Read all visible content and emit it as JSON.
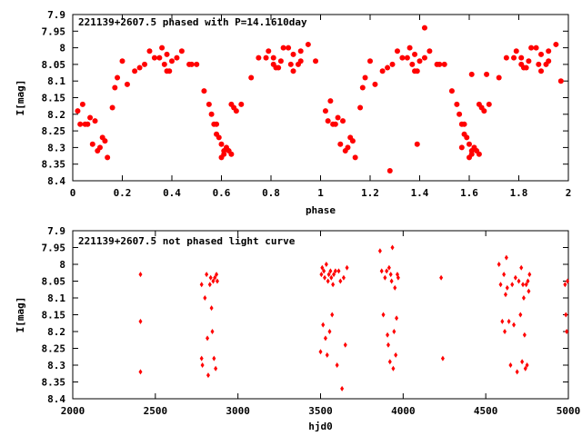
{
  "chart_data": [
    {
      "type": "scatter",
      "title": "221139+2607.5 phased with P=14.1610day",
      "xlabel": "phase",
      "ylabel": "I[mag]",
      "xlim": [
        0,
        2
      ],
      "ylim": [
        8.4,
        7.9
      ],
      "y_inverted": true,
      "grid": false,
      "marker_color": "#ff0000",
      "marker": "filled-circle",
      "x_ticks": [
        "0",
        "0.2",
        "0.4",
        "0.6",
        "0.8",
        "1",
        "1.2",
        "1.4",
        "1.6",
        "1.8",
        "2"
      ],
      "y_ticks": [
        "7.9",
        "7.95",
        "8",
        "8.05",
        "8.1",
        "8.15",
        "8.2",
        "8.25",
        "8.3",
        "8.35",
        "8.4"
      ],
      "points": [
        [
          0.02,
          8.19
        ],
        [
          0.03,
          8.23
        ],
        [
          0.04,
          8.17
        ],
        [
          0.05,
          8.23
        ],
        [
          0.06,
          8.23
        ],
        [
          0.07,
          8.21
        ],
        [
          0.08,
          8.29
        ],
        [
          0.09,
          8.22
        ],
        [
          0.1,
          8.31
        ],
        [
          0.11,
          8.3
        ],
        [
          0.12,
          8.27
        ],
        [
          0.13,
          8.28
        ],
        [
          0.14,
          8.33
        ],
        [
          0.16,
          8.18
        ],
        [
          0.17,
          8.12
        ],
        [
          0.18,
          8.09
        ],
        [
          0.2,
          8.04
        ],
        [
          0.22,
          8.11
        ],
        [
          0.25,
          8.07
        ],
        [
          0.27,
          8.06
        ],
        [
          0.29,
          8.05
        ],
        [
          0.31,
          8.01
        ],
        [
          0.33,
          8.03
        ],
        [
          0.35,
          8.03
        ],
        [
          0.36,
          8.0
        ],
        [
          0.37,
          8.05
        ],
        [
          0.38,
          8.07
        ],
        [
          0.38,
          8.02
        ],
        [
          0.39,
          8.07
        ],
        [
          0.4,
          8.04
        ],
        [
          0.42,
          8.03
        ],
        [
          0.44,
          8.01
        ],
        [
          0.47,
          8.05
        ],
        [
          0.48,
          8.05
        ],
        [
          0.5,
          8.05
        ],
        [
          0.53,
          8.13
        ],
        [
          0.55,
          8.17
        ],
        [
          0.56,
          8.2
        ],
        [
          0.57,
          8.23
        ],
        [
          0.58,
          8.23
        ],
        [
          0.58,
          8.26
        ],
        [
          0.59,
          8.27
        ],
        [
          0.6,
          8.29
        ],
        [
          0.6,
          8.33
        ],
        [
          0.61,
          8.32
        ],
        [
          0.61,
          8.31
        ],
        [
          0.62,
          8.3
        ],
        [
          0.63,
          8.31
        ],
        [
          0.64,
          8.17
        ],
        [
          0.64,
          8.32
        ],
        [
          0.65,
          8.18
        ],
        [
          0.66,
          8.19
        ],
        [
          0.68,
          8.17
        ],
        [
          0.72,
          8.09
        ],
        [
          0.75,
          8.03
        ],
        [
          0.78,
          8.03
        ],
        [
          0.79,
          8.01
        ],
        [
          0.81,
          8.05
        ],
        [
          0.81,
          8.03
        ],
        [
          0.82,
          8.06
        ],
        [
          0.83,
          8.06
        ],
        [
          0.84,
          8.04
        ],
        [
          0.85,
          8.0
        ],
        [
          0.87,
          8.0
        ],
        [
          0.88,
          8.05
        ],
        [
          0.89,
          8.07
        ],
        [
          0.89,
          8.02
        ],
        [
          0.91,
          8.05
        ],
        [
          0.92,
          8.04
        ],
        [
          0.92,
          8.01
        ],
        [
          0.95,
          7.99
        ],
        [
          1.02,
          8.19
        ],
        [
          1.03,
          8.22
        ],
        [
          1.04,
          8.16
        ],
        [
          1.05,
          8.23
        ],
        [
          1.06,
          8.23
        ],
        [
          1.07,
          8.21
        ],
        [
          1.08,
          8.29
        ],
        [
          1.09,
          8.22
        ],
        [
          1.1,
          8.31
        ],
        [
          1.11,
          8.3
        ],
        [
          1.12,
          8.27
        ],
        [
          1.13,
          8.28
        ],
        [
          1.14,
          8.33
        ],
        [
          1.16,
          8.18
        ],
        [
          1.17,
          8.12
        ],
        [
          1.18,
          8.09
        ],
        [
          1.2,
          8.04
        ],
        [
          1.22,
          8.11
        ],
        [
          1.25,
          8.07
        ],
        [
          1.27,
          8.06
        ],
        [
          1.29,
          8.05
        ],
        [
          1.31,
          8.01
        ],
        [
          1.33,
          8.03
        ],
        [
          1.35,
          8.03
        ],
        [
          1.36,
          8.0
        ],
        [
          1.37,
          8.05
        ],
        [
          1.38,
          8.07
        ],
        [
          1.38,
          8.02
        ],
        [
          1.39,
          8.07
        ],
        [
          1.4,
          8.04
        ],
        [
          1.42,
          8.03
        ],
        [
          1.44,
          8.01
        ],
        [
          1.47,
          8.05
        ],
        [
          1.48,
          8.05
        ],
        [
          1.5,
          8.05
        ],
        [
          1.53,
          8.13
        ],
        [
          1.55,
          8.17
        ],
        [
          1.56,
          8.2
        ],
        [
          1.57,
          8.23
        ],
        [
          1.58,
          8.23
        ],
        [
          1.58,
          8.26
        ],
        [
          1.59,
          8.27
        ],
        [
          1.6,
          8.29
        ],
        [
          1.6,
          8.33
        ],
        [
          1.61,
          8.32
        ],
        [
          1.61,
          8.31
        ],
        [
          1.62,
          8.3
        ],
        [
          1.63,
          8.31
        ],
        [
          1.64,
          8.17
        ],
        [
          1.64,
          8.32
        ],
        [
          1.65,
          8.18
        ],
        [
          1.66,
          8.19
        ],
        [
          1.68,
          8.17
        ],
        [
          1.72,
          8.09
        ],
        [
          1.75,
          8.03
        ],
        [
          1.78,
          8.03
        ],
        [
          1.79,
          8.01
        ],
        [
          1.81,
          8.05
        ],
        [
          1.81,
          8.03
        ],
        [
          1.82,
          8.06
        ],
        [
          1.83,
          8.06
        ],
        [
          1.84,
          8.04
        ],
        [
          1.85,
          8.0
        ],
        [
          1.87,
          8.0
        ],
        [
          1.88,
          8.05
        ],
        [
          1.89,
          8.07
        ],
        [
          1.89,
          8.02
        ],
        [
          1.91,
          8.05
        ],
        [
          1.92,
          8.04
        ],
        [
          1.92,
          8.01
        ],
        [
          1.95,
          7.99
        ],
        [
          1.28,
          8.37
        ],
        [
          1.42,
          7.94
        ],
        [
          1.39,
          8.29
        ],
        [
          1.67,
          8.08
        ],
        [
          1.97,
          8.1
        ],
        [
          0.98,
          8.04
        ],
        [
          1.57,
          8.3
        ],
        [
          1.61,
          8.08
        ]
      ]
    },
    {
      "type": "scatter",
      "title": "221139+2607.5 not phased light curve",
      "xlabel": "hjd0",
      "ylabel": "I[mag]",
      "xlim": [
        2000,
        5000
      ],
      "ylim": [
        8.4,
        7.9
      ],
      "y_inverted": true,
      "grid": false,
      "marker_color": "#ff0000",
      "marker": "diamond",
      "x_ticks": [
        "2000",
        "2500",
        "3000",
        "3500",
        "4000",
        "4500",
        "5000"
      ],
      "y_ticks": [
        "7.9",
        "7.95",
        "8",
        "8.05",
        "8.1",
        "8.15",
        "8.2",
        "8.25",
        "8.3",
        "8.35",
        "8.4"
      ],
      "points": [
        [
          2410,
          8.03
        ],
        [
          2410,
          8.17
        ],
        [
          2410,
          8.32
        ],
        [
          2780,
          8.06
        ],
        [
          2780,
          8.28
        ],
        [
          2785,
          8.3
        ],
        [
          2800,
          8.1
        ],
        [
          2810,
          8.03
        ],
        [
          2815,
          8.22
        ],
        [
          2820,
          8.33
        ],
        [
          2830,
          8.06
        ],
        [
          2835,
          8.04
        ],
        [
          2840,
          8.13
        ],
        [
          2845,
          8.2
        ],
        [
          2850,
          8.05
        ],
        [
          2855,
          8.28
        ],
        [
          2860,
          8.04
        ],
        [
          2865,
          8.31
        ],
        [
          2870,
          8.03
        ],
        [
          2875,
          8.05
        ],
        [
          3500,
          8.26
        ],
        [
          3505,
          8.03
        ],
        [
          3510,
          8.01
        ],
        [
          3515,
          8.18
        ],
        [
          3520,
          8.02
        ],
        [
          3525,
          8.04
        ],
        [
          3530,
          8.22
        ],
        [
          3535,
          8.0
        ],
        [
          3540,
          8.27
        ],
        [
          3545,
          8.05
        ],
        [
          3550,
          8.03
        ],
        [
          3555,
          8.2
        ],
        [
          3560,
          8.02
        ],
        [
          3565,
          8.04
        ],
        [
          3570,
          8.15
        ],
        [
          3575,
          8.06
        ],
        [
          3580,
          8.03
        ],
        [
          3590,
          8.02
        ],
        [
          3600,
          8.3
        ],
        [
          3610,
          8.02
        ],
        [
          3620,
          8.05
        ],
        [
          3630,
          8.37
        ],
        [
          3640,
          8.04
        ],
        [
          3650,
          8.24
        ],
        [
          3660,
          8.01
        ],
        [
          3860,
          7.96
        ],
        [
          3870,
          8.02
        ],
        [
          3880,
          8.15
        ],
        [
          3890,
          8.04
        ],
        [
          3900,
          8.02
        ],
        [
          3905,
          8.21
        ],
        [
          3910,
          8.24
        ],
        [
          3915,
          8.01
        ],
        [
          3920,
          8.29
        ],
        [
          3925,
          8.03
        ],
        [
          3930,
          8.05
        ],
        [
          3935,
          7.95
        ],
        [
          3940,
          8.31
        ],
        [
          3945,
          8.2
        ],
        [
          3950,
          8.07
        ],
        [
          3955,
          8.27
        ],
        [
          3960,
          8.16
        ],
        [
          3965,
          8.03
        ],
        [
          3970,
          8.04
        ],
        [
          4230,
          8.04
        ],
        [
          4240,
          8.28
        ],
        [
          4580,
          8.0
        ],
        [
          4590,
          8.06
        ],
        [
          4600,
          8.17
        ],
        [
          4610,
          8.03
        ],
        [
          4615,
          8.2
        ],
        [
          4620,
          8.09
        ],
        [
          4625,
          7.98
        ],
        [
          4630,
          8.07
        ],
        [
          4640,
          8.17
        ],
        [
          4650,
          8.3
        ],
        [
          4660,
          8.06
        ],
        [
          4670,
          8.18
        ],
        [
          4680,
          8.04
        ],
        [
          4690,
          8.32
        ],
        [
          4700,
          8.05
        ],
        [
          4710,
          8.15
        ],
        [
          4715,
          8.01
        ],
        [
          4720,
          8.29
        ],
        [
          4725,
          8.06
        ],
        [
          4730,
          8.1
        ],
        [
          4735,
          8.21
        ],
        [
          4740,
          8.31
        ],
        [
          4745,
          8.06
        ],
        [
          4750,
          8.3
        ],
        [
          4755,
          8.05
        ],
        [
          4760,
          8.08
        ],
        [
          4765,
          8.03
        ],
        [
          4980,
          8.06
        ],
        [
          4985,
          8.15
        ],
        [
          4990,
          8.2
        ],
        [
          4995,
          8.05
        ]
      ]
    }
  ]
}
